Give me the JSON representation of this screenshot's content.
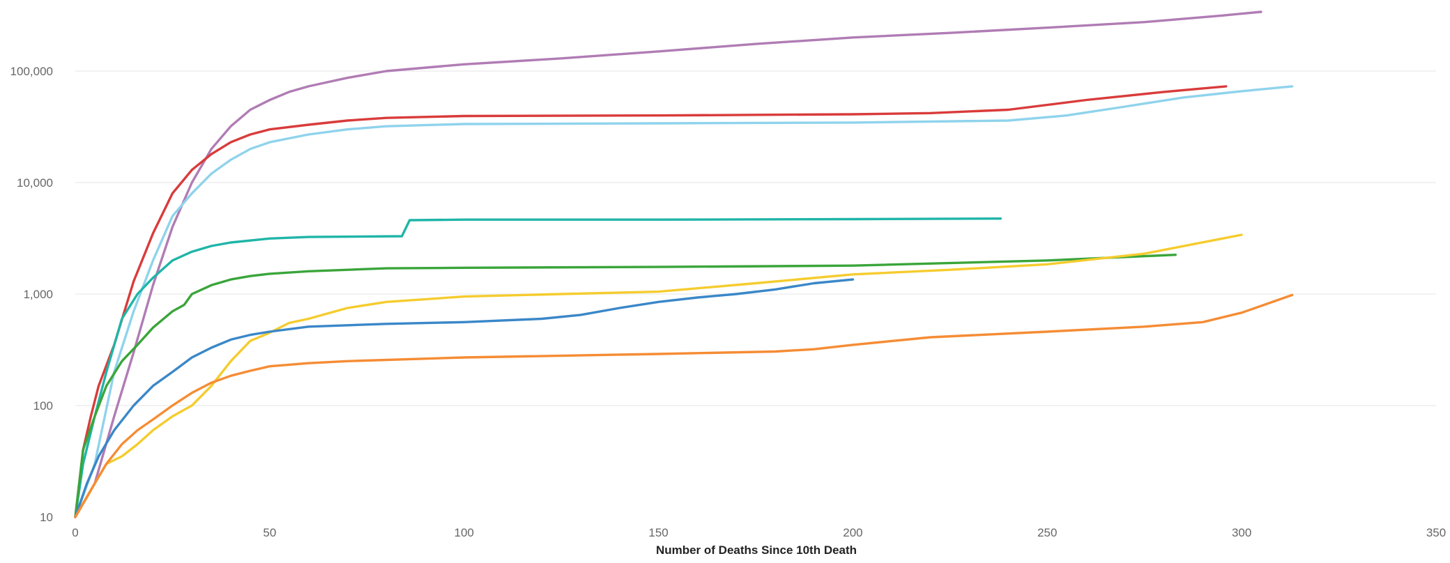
{
  "chart_data": {
    "type": "line",
    "title": "",
    "xlabel": "Number of Deaths Since 10th Death",
    "ylabel": "",
    "x_range": [
      0,
      350
    ],
    "y_range": [
      10,
      400000
    ],
    "y_scale": "log",
    "x_ticks": [
      0,
      50,
      100,
      150,
      200,
      250,
      300,
      350
    ],
    "y_ticks": [
      {
        "value": 10,
        "label": "10"
      },
      {
        "value": 100,
        "label": "100"
      },
      {
        "value": 1000,
        "label": "1,000"
      },
      {
        "value": 10000,
        "label": "10,000"
      },
      {
        "value": 100000,
        "label": "100,000"
      }
    ],
    "grid": "horizontal",
    "legend": "none",
    "series": [
      {
        "color": "#b07cb4",
        "points": [
          [
            0,
            10
          ],
          [
            5,
            20
          ],
          [
            10,
            80
          ],
          [
            15,
            300
          ],
          [
            20,
            1200
          ],
          [
            25,
            4000
          ],
          [
            30,
            10000
          ],
          [
            35,
            20000
          ],
          [
            40,
            32000
          ],
          [
            45,
            45000
          ],
          [
            50,
            55000
          ],
          [
            55,
            65000
          ],
          [
            60,
            73000
          ],
          [
            70,
            87000
          ],
          [
            80,
            100000
          ],
          [
            100,
            115000
          ],
          [
            125,
            130000
          ],
          [
            150,
            150000
          ],
          [
            175,
            175000
          ],
          [
            200,
            200000
          ],
          [
            225,
            220000
          ],
          [
            250,
            245000
          ],
          [
            275,
            275000
          ],
          [
            295,
            315000
          ],
          [
            305,
            340000
          ]
        ]
      },
      {
        "color": "#d93b3b",
        "points": [
          [
            0,
            10
          ],
          [
            2,
            40
          ],
          [
            4,
            80
          ],
          [
            6,
            150
          ],
          [
            10,
            350
          ],
          [
            15,
            1300
          ],
          [
            20,
            3500
          ],
          [
            25,
            8000
          ],
          [
            30,
            13000
          ],
          [
            35,
            18000
          ],
          [
            40,
            23000
          ],
          [
            45,
            27000
          ],
          [
            50,
            30000
          ],
          [
            60,
            33000
          ],
          [
            70,
            36000
          ],
          [
            80,
            38000
          ],
          [
            100,
            39500
          ],
          [
            150,
            40000
          ],
          [
            200,
            41000
          ],
          [
            220,
            42000
          ],
          [
            240,
            45000
          ],
          [
            260,
            55000
          ],
          [
            280,
            65000
          ],
          [
            296,
            73000
          ]
        ]
      },
      {
        "color": "#8fd3ec",
        "points": [
          [
            0,
            10
          ],
          [
            5,
            30
          ],
          [
            10,
            200
          ],
          [
            15,
            700
          ],
          [
            20,
            2000
          ],
          [
            25,
            5000
          ],
          [
            30,
            8000
          ],
          [
            35,
            12000
          ],
          [
            40,
            16000
          ],
          [
            45,
            20000
          ],
          [
            50,
            23000
          ],
          [
            60,
            27000
          ],
          [
            70,
            30000
          ],
          [
            80,
            32000
          ],
          [
            100,
            33500
          ],
          [
            150,
            34000
          ],
          [
            200,
            34500
          ],
          [
            240,
            36000
          ],
          [
            255,
            40000
          ],
          [
            270,
            48000
          ],
          [
            285,
            58000
          ],
          [
            300,
            66000
          ],
          [
            313,
            73000
          ]
        ]
      },
      {
        "color": "#1fb5a8",
        "points": [
          [
            0,
            10
          ],
          [
            2,
            30
          ],
          [
            5,
            80
          ],
          [
            8,
            200
          ],
          [
            12,
            600
          ],
          [
            16,
            1000
          ],
          [
            20,
            1400
          ],
          [
            25,
            2000
          ],
          [
            30,
            2400
          ],
          [
            35,
            2700
          ],
          [
            40,
            2900
          ],
          [
            50,
            3150
          ],
          [
            60,
            3250
          ],
          [
            84,
            3300
          ],
          [
            86,
            4600
          ],
          [
            100,
            4650
          ],
          [
            150,
            4650
          ],
          [
            200,
            4700
          ],
          [
            238,
            4750
          ]
        ]
      },
      {
        "color": "#3aa53a",
        "points": [
          [
            0,
            10
          ],
          [
            2,
            40
          ],
          [
            5,
            80
          ],
          [
            8,
            150
          ],
          [
            12,
            250
          ],
          [
            16,
            350
          ],
          [
            20,
            500
          ],
          [
            25,
            700
          ],
          [
            28,
            800
          ],
          [
            30,
            1000
          ],
          [
            35,
            1200
          ],
          [
            40,
            1350
          ],
          [
            45,
            1450
          ],
          [
            50,
            1520
          ],
          [
            60,
            1600
          ],
          [
            80,
            1700
          ],
          [
            100,
            1720
          ],
          [
            150,
            1750
          ],
          [
            200,
            1800
          ],
          [
            250,
            2000
          ],
          [
            283,
            2250
          ]
        ]
      },
      {
        "color": "#f5cc2e",
        "points": [
          [
            0,
            10
          ],
          [
            3,
            15
          ],
          [
            5,
            20
          ],
          [
            8,
            30
          ],
          [
            12,
            35
          ],
          [
            16,
            45
          ],
          [
            20,
            60
          ],
          [
            25,
            80
          ],
          [
            30,
            100
          ],
          [
            35,
            150
          ],
          [
            40,
            250
          ],
          [
            45,
            380
          ],
          [
            50,
            450
          ],
          [
            55,
            550
          ],
          [
            60,
            600
          ],
          [
            70,
            750
          ],
          [
            80,
            850
          ],
          [
            100,
            950
          ],
          [
            125,
            1000
          ],
          [
            150,
            1050
          ],
          [
            175,
            1250
          ],
          [
            200,
            1500
          ],
          [
            225,
            1650
          ],
          [
            250,
            1850
          ],
          [
            275,
            2300
          ],
          [
            300,
            3400
          ]
        ]
      },
      {
        "color": "#3a87c8",
        "points": [
          [
            0,
            10
          ],
          [
            3,
            20
          ],
          [
            6,
            35
          ],
          [
            10,
            60
          ],
          [
            15,
            100
          ],
          [
            20,
            150
          ],
          [
            25,
            200
          ],
          [
            30,
            270
          ],
          [
            35,
            330
          ],
          [
            40,
            390
          ],
          [
            45,
            430
          ],
          [
            50,
            460
          ],
          [
            60,
            510
          ],
          [
            80,
            540
          ],
          [
            100,
            560
          ],
          [
            120,
            600
          ],
          [
            130,
            650
          ],
          [
            140,
            750
          ],
          [
            150,
            850
          ],
          [
            160,
            930
          ],
          [
            170,
            1000
          ],
          [
            180,
            1100
          ],
          [
            190,
            1250
          ],
          [
            200,
            1350
          ]
        ]
      },
      {
        "color": "#f58c34",
        "points": [
          [
            0,
            10
          ],
          [
            5,
            20
          ],
          [
            8,
            30
          ],
          [
            12,
            45
          ],
          [
            16,
            60
          ],
          [
            20,
            75
          ],
          [
            25,
            100
          ],
          [
            30,
            130
          ],
          [
            35,
            160
          ],
          [
            40,
            185
          ],
          [
            45,
            205
          ],
          [
            50,
            225
          ],
          [
            60,
            240
          ],
          [
            70,
            250
          ],
          [
            100,
            270
          ],
          [
            150,
            290
          ],
          [
            180,
            305
          ],
          [
            190,
            320
          ],
          [
            200,
            350
          ],
          [
            220,
            410
          ],
          [
            250,
            460
          ],
          [
            275,
            510
          ],
          [
            290,
            560
          ],
          [
            300,
            680
          ],
          [
            313,
            980
          ]
        ]
      }
    ]
  }
}
